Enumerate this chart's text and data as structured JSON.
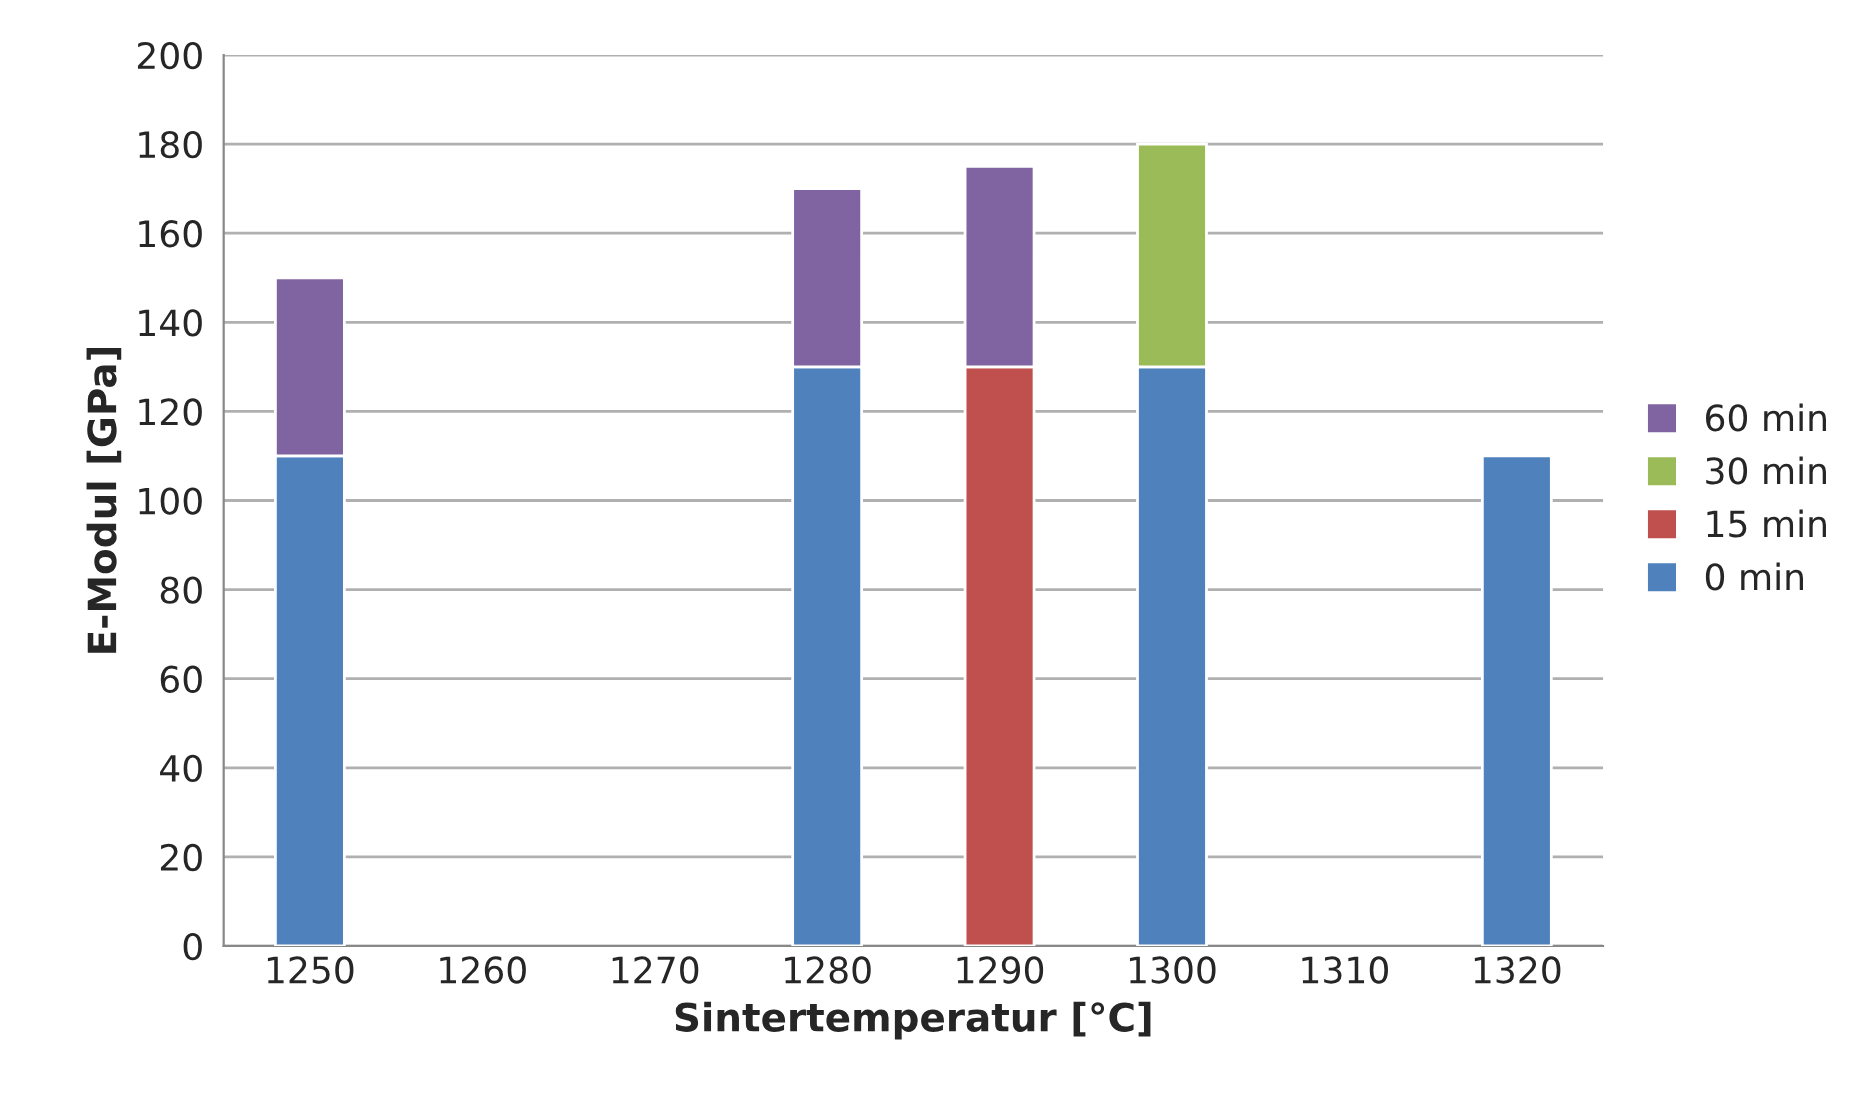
{
  "chart_data": {
    "type": "bar",
    "stacked": true,
    "xlabel": "Sintertemperatur [°C]",
    "ylabel": "E-Modul [GPa]",
    "categories": [
      "1250",
      "1260",
      "1270",
      "1280",
      "1290",
      "1300",
      "1310",
      "1320"
    ],
    "series": [
      {
        "name": "0 min",
        "color": "#4f81bd",
        "values": [
          110,
          null,
          null,
          130,
          null,
          130,
          null,
          110
        ]
      },
      {
        "name": "15 min",
        "color": "#c0504d",
        "values": [
          null,
          null,
          null,
          null,
          130,
          null,
          null,
          null
        ]
      },
      {
        "name": "30 min",
        "color": "#9bbb59",
        "values": [
          null,
          null,
          null,
          null,
          null,
          50,
          null,
          null
        ]
      },
      {
        "name": "60 min",
        "color": "#8064a2",
        "values": [
          40,
          null,
          null,
          40,
          45,
          null,
          null,
          null
        ]
      }
    ],
    "ylim": [
      0,
      200
    ],
    "yticks": [
      0,
      20,
      40,
      60,
      80,
      100,
      120,
      140,
      160,
      180,
      200
    ],
    "grid": "y",
    "legend": "right"
  }
}
